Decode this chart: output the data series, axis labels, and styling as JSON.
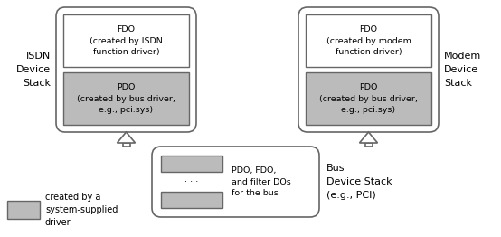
{
  "bg_color": "#ffffff",
  "gray_fill": "#bbbbbb",
  "white_fill": "#ffffff",
  "box_edge": "#666666",
  "text_color": "#000000",
  "isdn_stack_label": "ISDN\nDevice\nStack",
  "modem_stack_label": "Modem\nDevice\nStack",
  "bus_stack_label": "Bus\nDevice Stack\n(e.g., PCI)",
  "isdn_fdo_text": "FDO\n(created by ISDN\nfunction driver)",
  "isdn_pdo_text": "PDO\n(created by bus driver,\ne.g., pci.sys)",
  "modem_fdo_text": "FDO\n(created by modem\nfunction driver)",
  "modem_pdo_text": "PDO\n(created by bus driver,\ne.g., pci.sys)",
  "bus_label_text": "PDO, FDO,\nand filter DOs\nfor the bus",
  "bus_dots": ". . .",
  "legend_text": "created by a\nsystem-supplied\ndriver",
  "figsize": [
    5.54,
    2.62
  ],
  "dpi": 100
}
